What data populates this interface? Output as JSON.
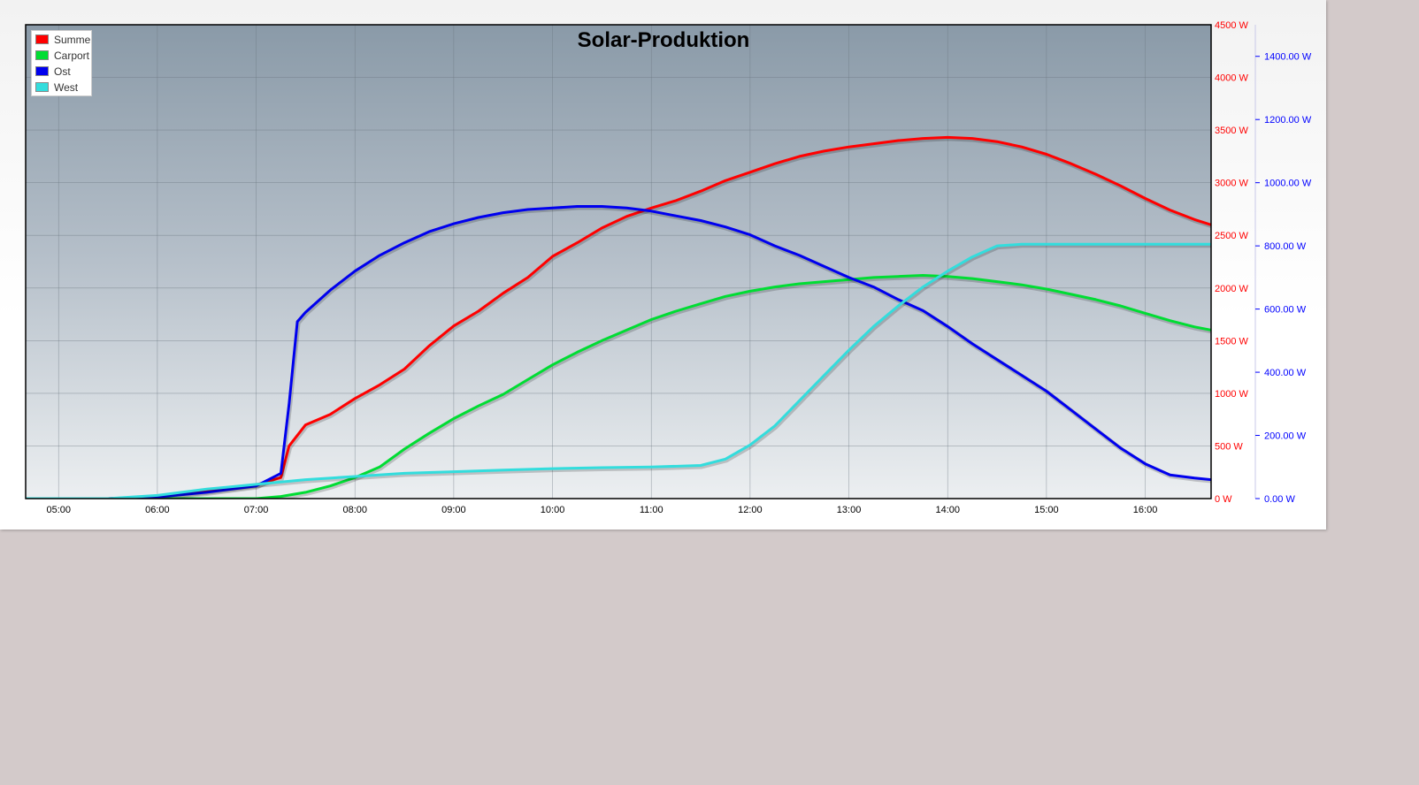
{
  "chart_data": {
    "type": "line",
    "title": "Solar-Produktion",
    "x_ticks": [
      "05:00",
      "06:00",
      "07:00",
      "08:00",
      "09:00",
      "10:00",
      "11:00",
      "12:00",
      "13:00",
      "14:00",
      "15:00",
      "16:00"
    ],
    "xlim": [
      "04:40",
      "16:40"
    ],
    "y_left": {
      "ticks": [
        "0 W",
        "500 W",
        "1000 W",
        "1500 W",
        "2000 W",
        "2500 W",
        "3000 W",
        "3500 W",
        "4000 W",
        "4500 W"
      ],
      "range": [
        0,
        4500
      ],
      "color": "#ff0000"
    },
    "y_right": {
      "ticks": [
        "0.00 W",
        "200.00 W",
        "400.00 W",
        "600.00 W",
        "800.00 W",
        "1000.00 W",
        "1200.00 W",
        "1400.00 W"
      ],
      "range": [
        0,
        1500
      ],
      "color": "#0000ff"
    },
    "grid": true,
    "legend_position": "top-left",
    "series": [
      {
        "name": "Summe",
        "color": "#ff0000",
        "axis": "left",
        "points": [
          [
            "04:40",
            0
          ],
          [
            "05:30",
            0
          ],
          [
            "06:00",
            20
          ],
          [
            "06:30",
            70
          ],
          [
            "07:00",
            130
          ],
          [
            "07:15",
            200
          ],
          [
            "07:20",
            500
          ],
          [
            "07:30",
            700
          ],
          [
            "07:45",
            800
          ],
          [
            "08:00",
            950
          ],
          [
            "08:15",
            1080
          ],
          [
            "08:30",
            1230
          ],
          [
            "08:45",
            1450
          ],
          [
            "09:00",
            1640
          ],
          [
            "09:15",
            1780
          ],
          [
            "09:30",
            1950
          ],
          [
            "09:45",
            2100
          ],
          [
            "10:00",
            2300
          ],
          [
            "10:15",
            2430
          ],
          [
            "10:30",
            2570
          ],
          [
            "10:45",
            2680
          ],
          [
            "11:00",
            2760
          ],
          [
            "11:15",
            2830
          ],
          [
            "11:30",
            2920
          ],
          [
            "11:45",
            3020
          ],
          [
            "12:00",
            3100
          ],
          [
            "12:15",
            3180
          ],
          [
            "12:30",
            3250
          ],
          [
            "12:45",
            3300
          ],
          [
            "13:00",
            3340
          ],
          [
            "13:15",
            3370
          ],
          [
            "13:30",
            3400
          ],
          [
            "13:45",
            3420
          ],
          [
            "14:00",
            3430
          ],
          [
            "14:15",
            3420
          ],
          [
            "14:30",
            3390
          ],
          [
            "14:45",
            3340
          ],
          [
            "15:00",
            3270
          ],
          [
            "15:15",
            3180
          ],
          [
            "15:30",
            3080
          ],
          [
            "15:45",
            2970
          ],
          [
            "16:00",
            2850
          ],
          [
            "16:15",
            2740
          ],
          [
            "16:30",
            2650
          ],
          [
            "16:40",
            2600
          ]
        ]
      },
      {
        "name": "Carport",
        "color": "#00dd33",
        "axis": "left",
        "points": [
          [
            "04:40",
            0
          ],
          [
            "07:00",
            0
          ],
          [
            "07:15",
            20
          ],
          [
            "07:30",
            60
          ],
          [
            "07:45",
            120
          ],
          [
            "08:00",
            200
          ],
          [
            "08:15",
            300
          ],
          [
            "08:30",
            470
          ],
          [
            "08:45",
            620
          ],
          [
            "09:00",
            760
          ],
          [
            "09:15",
            880
          ],
          [
            "09:30",
            990
          ],
          [
            "09:45",
            1130
          ],
          [
            "10:00",
            1270
          ],
          [
            "10:15",
            1390
          ],
          [
            "10:30",
            1500
          ],
          [
            "10:45",
            1600
          ],
          [
            "11:00",
            1700
          ],
          [
            "11:15",
            1780
          ],
          [
            "11:30",
            1850
          ],
          [
            "11:45",
            1920
          ],
          [
            "12:00",
            1970
          ],
          [
            "12:15",
            2010
          ],
          [
            "12:30",
            2040
          ],
          [
            "12:45",
            2060
          ],
          [
            "13:00",
            2080
          ],
          [
            "13:15",
            2100
          ],
          [
            "13:30",
            2110
          ],
          [
            "13:45",
            2120
          ],
          [
            "14:00",
            2110
          ],
          [
            "14:15",
            2090
          ],
          [
            "14:30",
            2060
          ],
          [
            "14:45",
            2030
          ],
          [
            "15:00",
            1990
          ],
          [
            "15:15",
            1940
          ],
          [
            "15:30",
            1890
          ],
          [
            "15:45",
            1830
          ],
          [
            "16:00",
            1760
          ],
          [
            "16:15",
            1690
          ],
          [
            "16:30",
            1630
          ],
          [
            "16:40",
            1600
          ]
        ]
      },
      {
        "name": "Ost",
        "color": "#0000ee",
        "axis": "right",
        "points": [
          [
            "04:40",
            0
          ],
          [
            "05:30",
            0
          ],
          [
            "06:00",
            5
          ],
          [
            "06:30",
            20
          ],
          [
            "07:00",
            40
          ],
          [
            "07:15",
            80
          ],
          [
            "07:20",
            300
          ],
          [
            "07:25",
            560
          ],
          [
            "07:30",
            590
          ],
          [
            "07:45",
            660
          ],
          [
            "08:00",
            720
          ],
          [
            "08:15",
            770
          ],
          [
            "08:30",
            810
          ],
          [
            "08:45",
            845
          ],
          [
            "09:00",
            870
          ],
          [
            "09:15",
            890
          ],
          [
            "09:30",
            905
          ],
          [
            "09:45",
            915
          ],
          [
            "10:00",
            920
          ],
          [
            "10:15",
            925
          ],
          [
            "10:30",
            925
          ],
          [
            "10:45",
            920
          ],
          [
            "11:00",
            910
          ],
          [
            "11:15",
            895
          ],
          [
            "11:30",
            880
          ],
          [
            "11:45",
            860
          ],
          [
            "12:00",
            835
          ],
          [
            "12:15",
            800
          ],
          [
            "12:30",
            770
          ],
          [
            "12:45",
            735
          ],
          [
            "13:00",
            700
          ],
          [
            "13:15",
            670
          ],
          [
            "13:30",
            630
          ],
          [
            "13:45",
            595
          ],
          [
            "14:00",
            545
          ],
          [
            "14:15",
            490
          ],
          [
            "14:30",
            440
          ],
          [
            "14:45",
            390
          ],
          [
            "15:00",
            340
          ],
          [
            "15:15",
            280
          ],
          [
            "15:30",
            220
          ],
          [
            "15:45",
            160
          ],
          [
            "16:00",
            110
          ],
          [
            "16:15",
            75
          ],
          [
            "16:30",
            65
          ],
          [
            "16:40",
            60
          ]
        ]
      },
      {
        "name": "West",
        "color": "#33dddd",
        "axis": "right",
        "points": [
          [
            "04:40",
            0
          ],
          [
            "05:30",
            0
          ],
          [
            "06:00",
            10
          ],
          [
            "06:30",
            30
          ],
          [
            "07:00",
            45
          ],
          [
            "07:30",
            60
          ],
          [
            "08:00",
            70
          ],
          [
            "08:30",
            80
          ],
          [
            "09:00",
            85
          ],
          [
            "09:30",
            90
          ],
          [
            "10:00",
            95
          ],
          [
            "10:30",
            98
          ],
          [
            "11:00",
            100
          ],
          [
            "11:30",
            105
          ],
          [
            "11:45",
            125
          ],
          [
            "12:00",
            170
          ],
          [
            "12:15",
            230
          ],
          [
            "12:30",
            310
          ],
          [
            "12:45",
            390
          ],
          [
            "13:00",
            470
          ],
          [
            "13:15",
            545
          ],
          [
            "13:30",
            610
          ],
          [
            "13:45",
            670
          ],
          [
            "14:00",
            720
          ],
          [
            "14:15",
            765
          ],
          [
            "14:30",
            800
          ],
          [
            "14:45",
            805
          ],
          [
            "15:00",
            805
          ],
          [
            "15:30",
            805
          ],
          [
            "16:00",
            805
          ],
          [
            "16:40",
            805
          ]
        ]
      }
    ]
  }
}
